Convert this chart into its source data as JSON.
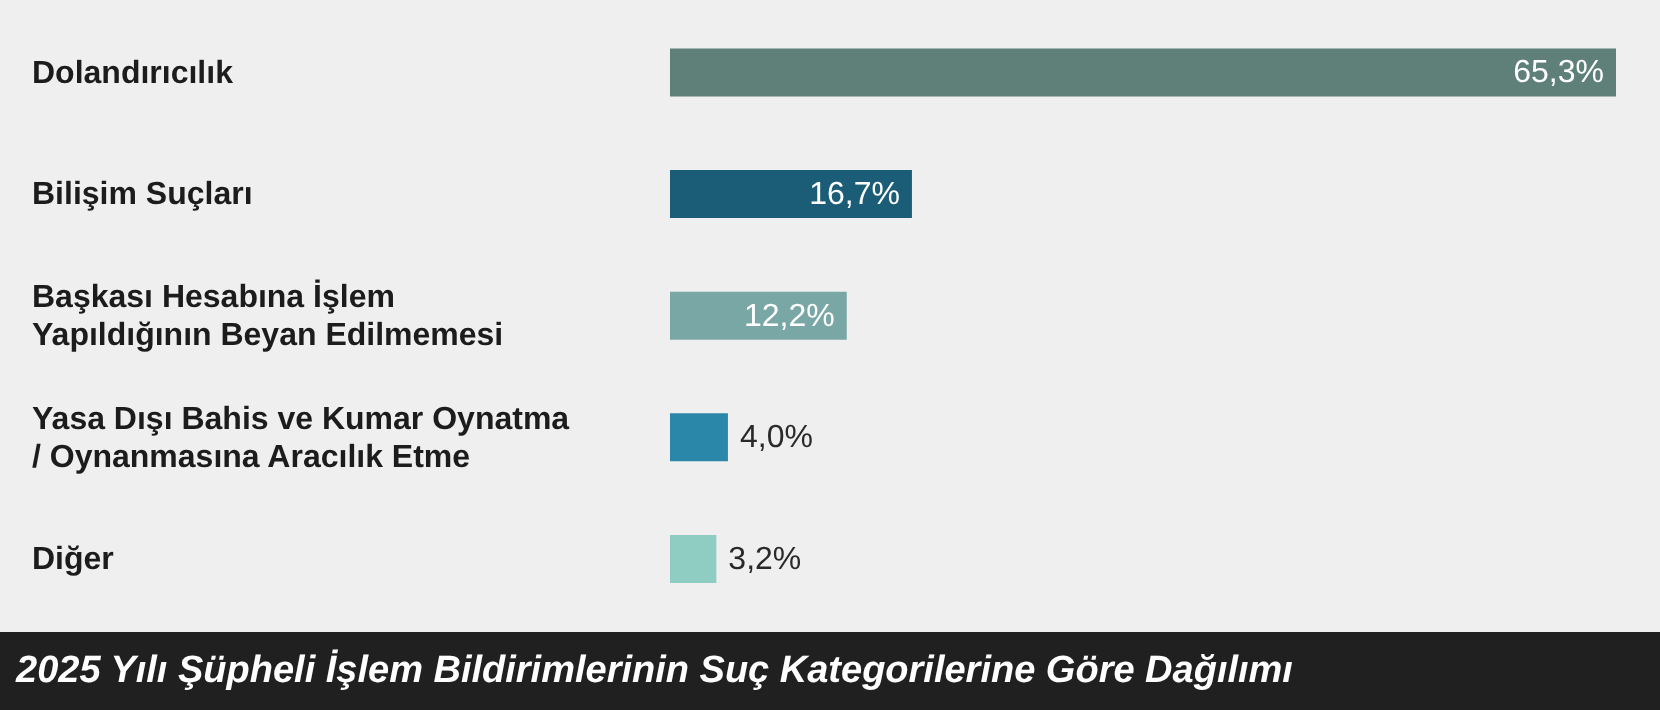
{
  "chart_data": {
    "type": "bar",
    "orientation": "horizontal",
    "title": "2025 Yılı Şüpheli İşlem Bildirimlerinin Suç Kategorilerine Göre Dağılımı",
    "categories": [
      "Dolandırıcılık",
      "Bilişim Suçları",
      "Başkası Hesabına İşlem Yapıldığının Beyan Edilmemesi",
      "Yasa Dışı Bahis ve Kumar Oynatma / Oynanmasına Aracılık Etme",
      "Diğer"
    ],
    "values": [
      65.3,
      16.7,
      12.2,
      4.0,
      3.2
    ],
    "value_labels": [
      "65,3%",
      "16,7%",
      "12,2%",
      "4,0%",
      "3,2%"
    ],
    "colors": [
      "#5e8079",
      "#1b5d77",
      "#78a7a5",
      "#2a87a9",
      "#8fcdc3"
    ],
    "grid": false,
    "legend": false
  }
}
